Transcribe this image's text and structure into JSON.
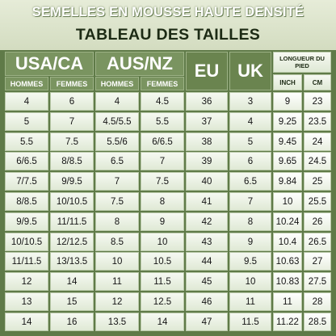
{
  "header": {
    "title": "SEMELLES EN MOUSSE HAUTE DENSITÉ",
    "subtitle": "TABLEAU DES TAILLES"
  },
  "columns": {
    "usa": "USA/CA",
    "aus": "AUS/NZ",
    "eu": "EU",
    "uk": "UK",
    "length": "LONGUEUR DU PIED",
    "hommes": "HOMMES",
    "femmes": "FEMMES",
    "inch": "INCH",
    "cm": "CM"
  },
  "rows": [
    [
      "4",
      "6",
      "4",
      "4.5",
      "36",
      "3",
      "9",
      "23"
    ],
    [
      "5",
      "7",
      "4.5/5.5",
      "5.5",
      "37",
      "4",
      "9.25",
      "23.5"
    ],
    [
      "5.5",
      "7.5",
      "5.5/6",
      "6/6.5",
      "38",
      "5",
      "9.45",
      "24"
    ],
    [
      "6/6.5",
      "8/8.5",
      "6.5",
      "7",
      "39",
      "6",
      "9.65",
      "24.5"
    ],
    [
      "7/7.5",
      "9/9.5",
      "7",
      "7.5",
      "40",
      "6.5",
      "9.84",
      "25"
    ],
    [
      "8/8.5",
      "10/10.5",
      "7.5",
      "8",
      "41",
      "7",
      "10",
      "25.5"
    ],
    [
      "9/9.5",
      "11/11.5",
      "8",
      "9",
      "42",
      "8",
      "10.24",
      "26"
    ],
    [
      "10/10.5",
      "12/12.5",
      "8.5",
      "10",
      "43",
      "9",
      "10.4",
      "26.5"
    ],
    [
      "11/11.5",
      "13/13.5",
      "10",
      "10.5",
      "44",
      "9.5",
      "10.63",
      "27"
    ],
    [
      "12",
      "14",
      "11",
      "11.5",
      "45",
      "10",
      "10.83",
      "27.5"
    ],
    [
      "13",
      "15",
      "12",
      "12.5",
      "46",
      "11",
      "11",
      "28"
    ],
    [
      "14",
      "16",
      "13.5",
      "14",
      "47",
      "11.5",
      "11.22",
      "28.5"
    ]
  ]
}
